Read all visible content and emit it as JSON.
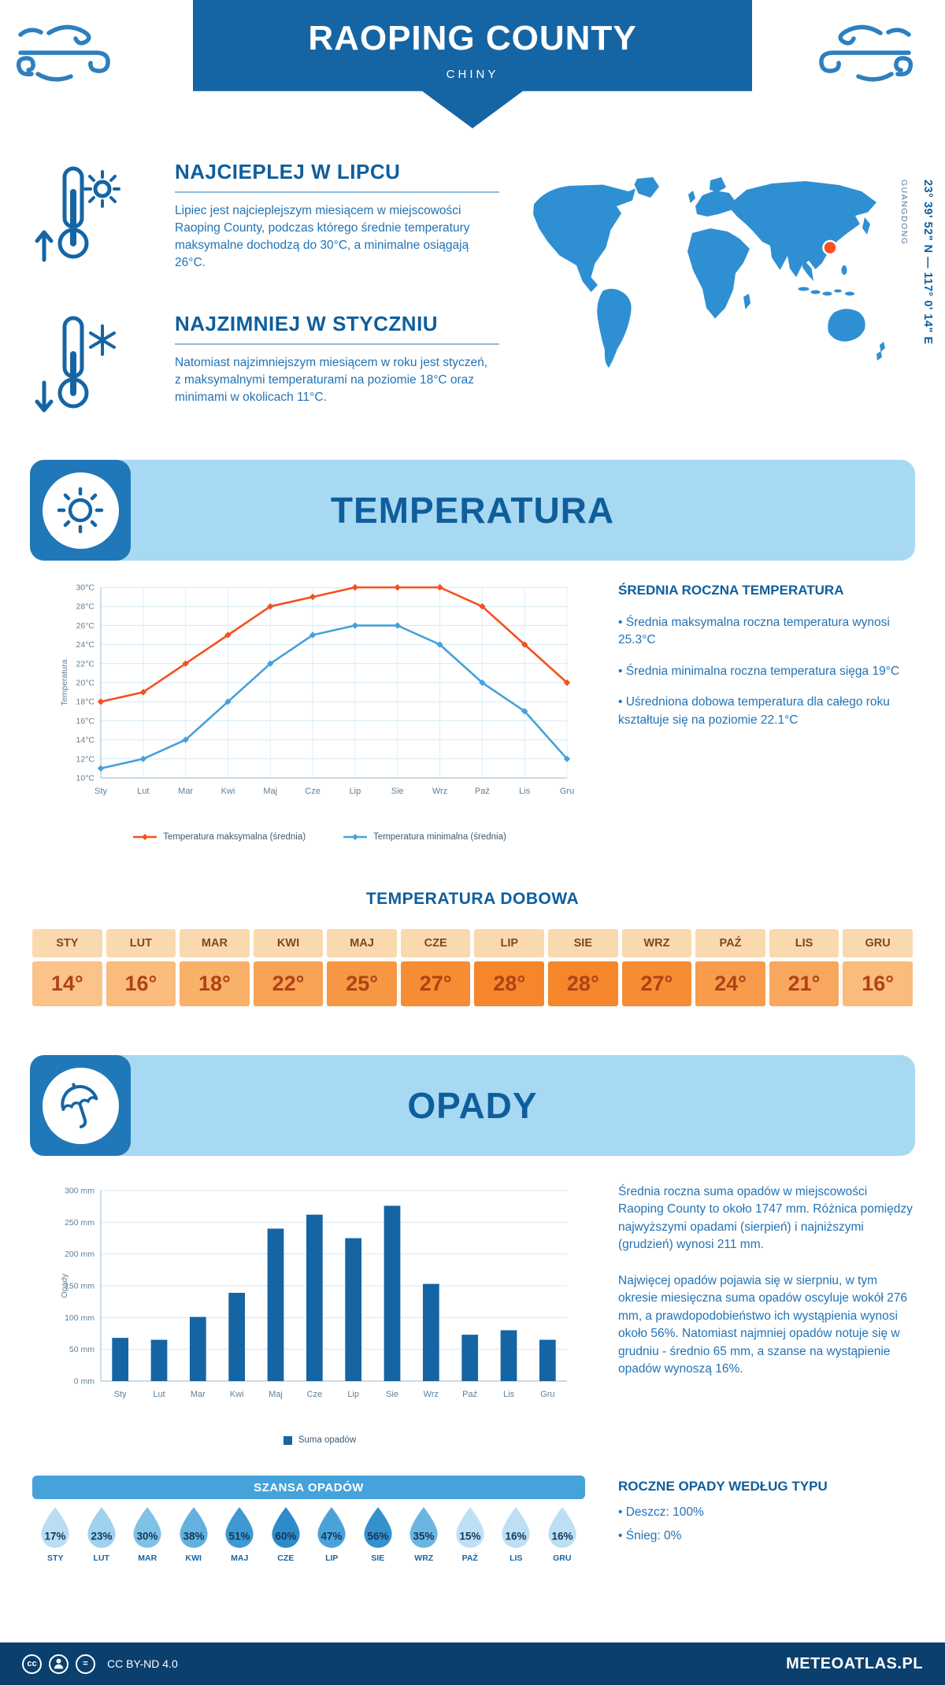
{
  "header": {
    "title": "RAOPING COUNTY",
    "subtitle": "CHINY"
  },
  "location": {
    "region": "GUANGDONG",
    "coordinates": "23° 39' 52\" N — 117° 0' 14\" E"
  },
  "intro": {
    "warm": {
      "title": "NAJCIEPLEJ W LIPCU",
      "text": "Lipiec jest najcieplejszym miesiącem w miejscowości Raoping County, podczas którego średnie temperatury maksymalne dochodzą do 30°C, a minimalne osiągają 26°C."
    },
    "cold": {
      "title": "NAJZIMNIEJ W STYCZNIU",
      "text": "Natomiast najzimniejszym miesiącem w roku jest styczeń, z maksymalnymi temperaturami na poziomie 18°C oraz minimami w okolicach 11°C."
    }
  },
  "temperature_section": {
    "title": "TEMPERATURA",
    "summary_title": "ŚREDNIA ROCZNA TEMPERATURA",
    "bullets": [
      "Średnia maksymalna roczna temperatura wynosi 25.3°C",
      "Średnia minimalna roczna temperatura sięga 19°C",
      "Uśredniona dobowa temperatura dla całego roku kształtuje się na poziomie 22.1°C"
    ],
    "daily_title": "TEMPERATURA DOBOWA",
    "months": [
      "STY",
      "LUT",
      "MAR",
      "KWI",
      "MAJ",
      "CZE",
      "LIP",
      "SIE",
      "WRZ",
      "PAŹ",
      "LIS",
      "GRU"
    ],
    "daily_values": [
      "14°",
      "16°",
      "18°",
      "22°",
      "25°",
      "27°",
      "28°",
      "28°",
      "27°",
      "24°",
      "21°",
      "16°"
    ],
    "month_header_bg": "#FBD9AE",
    "cell_colors": [
      "#FBC289",
      "#FABB7B",
      "#F9B069",
      "#F8A254",
      "#F79743",
      "#F68C33",
      "#F5862B",
      "#F5862B",
      "#F68C33",
      "#F89C4B",
      "#F9A75E",
      "#FABB7B"
    ]
  },
  "precipitation_section": {
    "title": "OPADY",
    "paragraphs": [
      "Średnia roczna suma opadów w miejscowości Raoping County to około 1747 mm. Różnica pomiędzy najwyższymi opadami (sierpień) i najniższymi (grudzień) wynosi 211 mm.",
      "Najwięcej opadów pojawia się w sierpniu, w tym okresie miesięczna suma opadów oscyluje wokół 276 mm, a prawdopodobieństwo ich wystąpienia wynosi około 56%. Natomiast najmniej opadów notuje się w grudniu - średnio 65 mm, a szanse na wystąpienie opadów wynoszą 16%."
    ],
    "type_title": "ROCZNE OPADY WEDŁUG TYPU",
    "type_bullets": [
      "Deszcz: 100%",
      "Śnieg: 0%"
    ],
    "chance": {
      "title": "SZANSA OPADÓW",
      "months": [
        "STY",
        "LUT",
        "MAR",
        "KWI",
        "MAJ",
        "CZE",
        "LIP",
        "SIE",
        "WRZ",
        "PAŹ",
        "LIS",
        "GRU"
      ],
      "values": [
        "17%",
        "23%",
        "30%",
        "38%",
        "51%",
        "60%",
        "47%",
        "56%",
        "35%",
        "15%",
        "16%",
        "16%"
      ],
      "colors": [
        "#B9DDF2",
        "#9ED2EE",
        "#7FC2E6",
        "#62B1DF",
        "#3D99D2",
        "#2E8BC9",
        "#4AA3D8",
        "#3591CC",
        "#6BB6E1",
        "#BFE0F4",
        "#BCDFF3",
        "#BCDFF3"
      ]
    }
  },
  "chart_data": [
    {
      "type": "line",
      "title": "",
      "categories": [
        "Sty",
        "Lut",
        "Mar",
        "Kwi",
        "Maj",
        "Cze",
        "Lip",
        "Sie",
        "Wrz",
        "Paź",
        "Lis",
        "Gru"
      ],
      "series": [
        {
          "name": "Temperatura maksymalna (średnia)",
          "color": "#F4511E",
          "values": [
            18,
            19,
            22,
            25,
            28,
            29,
            30,
            30,
            30,
            28,
            24,
            20
          ]
        },
        {
          "name": "Temperatura minimalna (średnia)",
          "color": "#47A1D9",
          "values": [
            11,
            12,
            14,
            18,
            22,
            25,
            26,
            26,
            24,
            20,
            17,
            12
          ]
        }
      ],
      "xlabel": "",
      "ylabel": "Temperatura",
      "ylim": [
        10,
        30
      ],
      "ytick_step": 2,
      "ytick_suffix": "°C",
      "grid": true,
      "legend_position": "bottom"
    },
    {
      "type": "bar",
      "title": "",
      "categories": [
        "Sty",
        "Lut",
        "Mar",
        "Kwi",
        "Maj",
        "Cze",
        "Lip",
        "Sie",
        "Wrz",
        "Paź",
        "Lis",
        "Gru"
      ],
      "series": [
        {
          "name": "Suma opadów",
          "color": "#1565A5",
          "values": [
            68,
            65,
            101,
            139,
            240,
            262,
            225,
            276,
            153,
            73,
            80,
            65
          ]
        }
      ],
      "xlabel": "",
      "ylabel": "Opady",
      "ylim": [
        0,
        300
      ],
      "ytick_step": 50,
      "ytick_suffix": " mm",
      "grid": true,
      "legend_position": "bottom"
    }
  ],
  "footer": {
    "license": "CC BY-ND 4.0",
    "brand": "METEOATLAS.PL"
  }
}
